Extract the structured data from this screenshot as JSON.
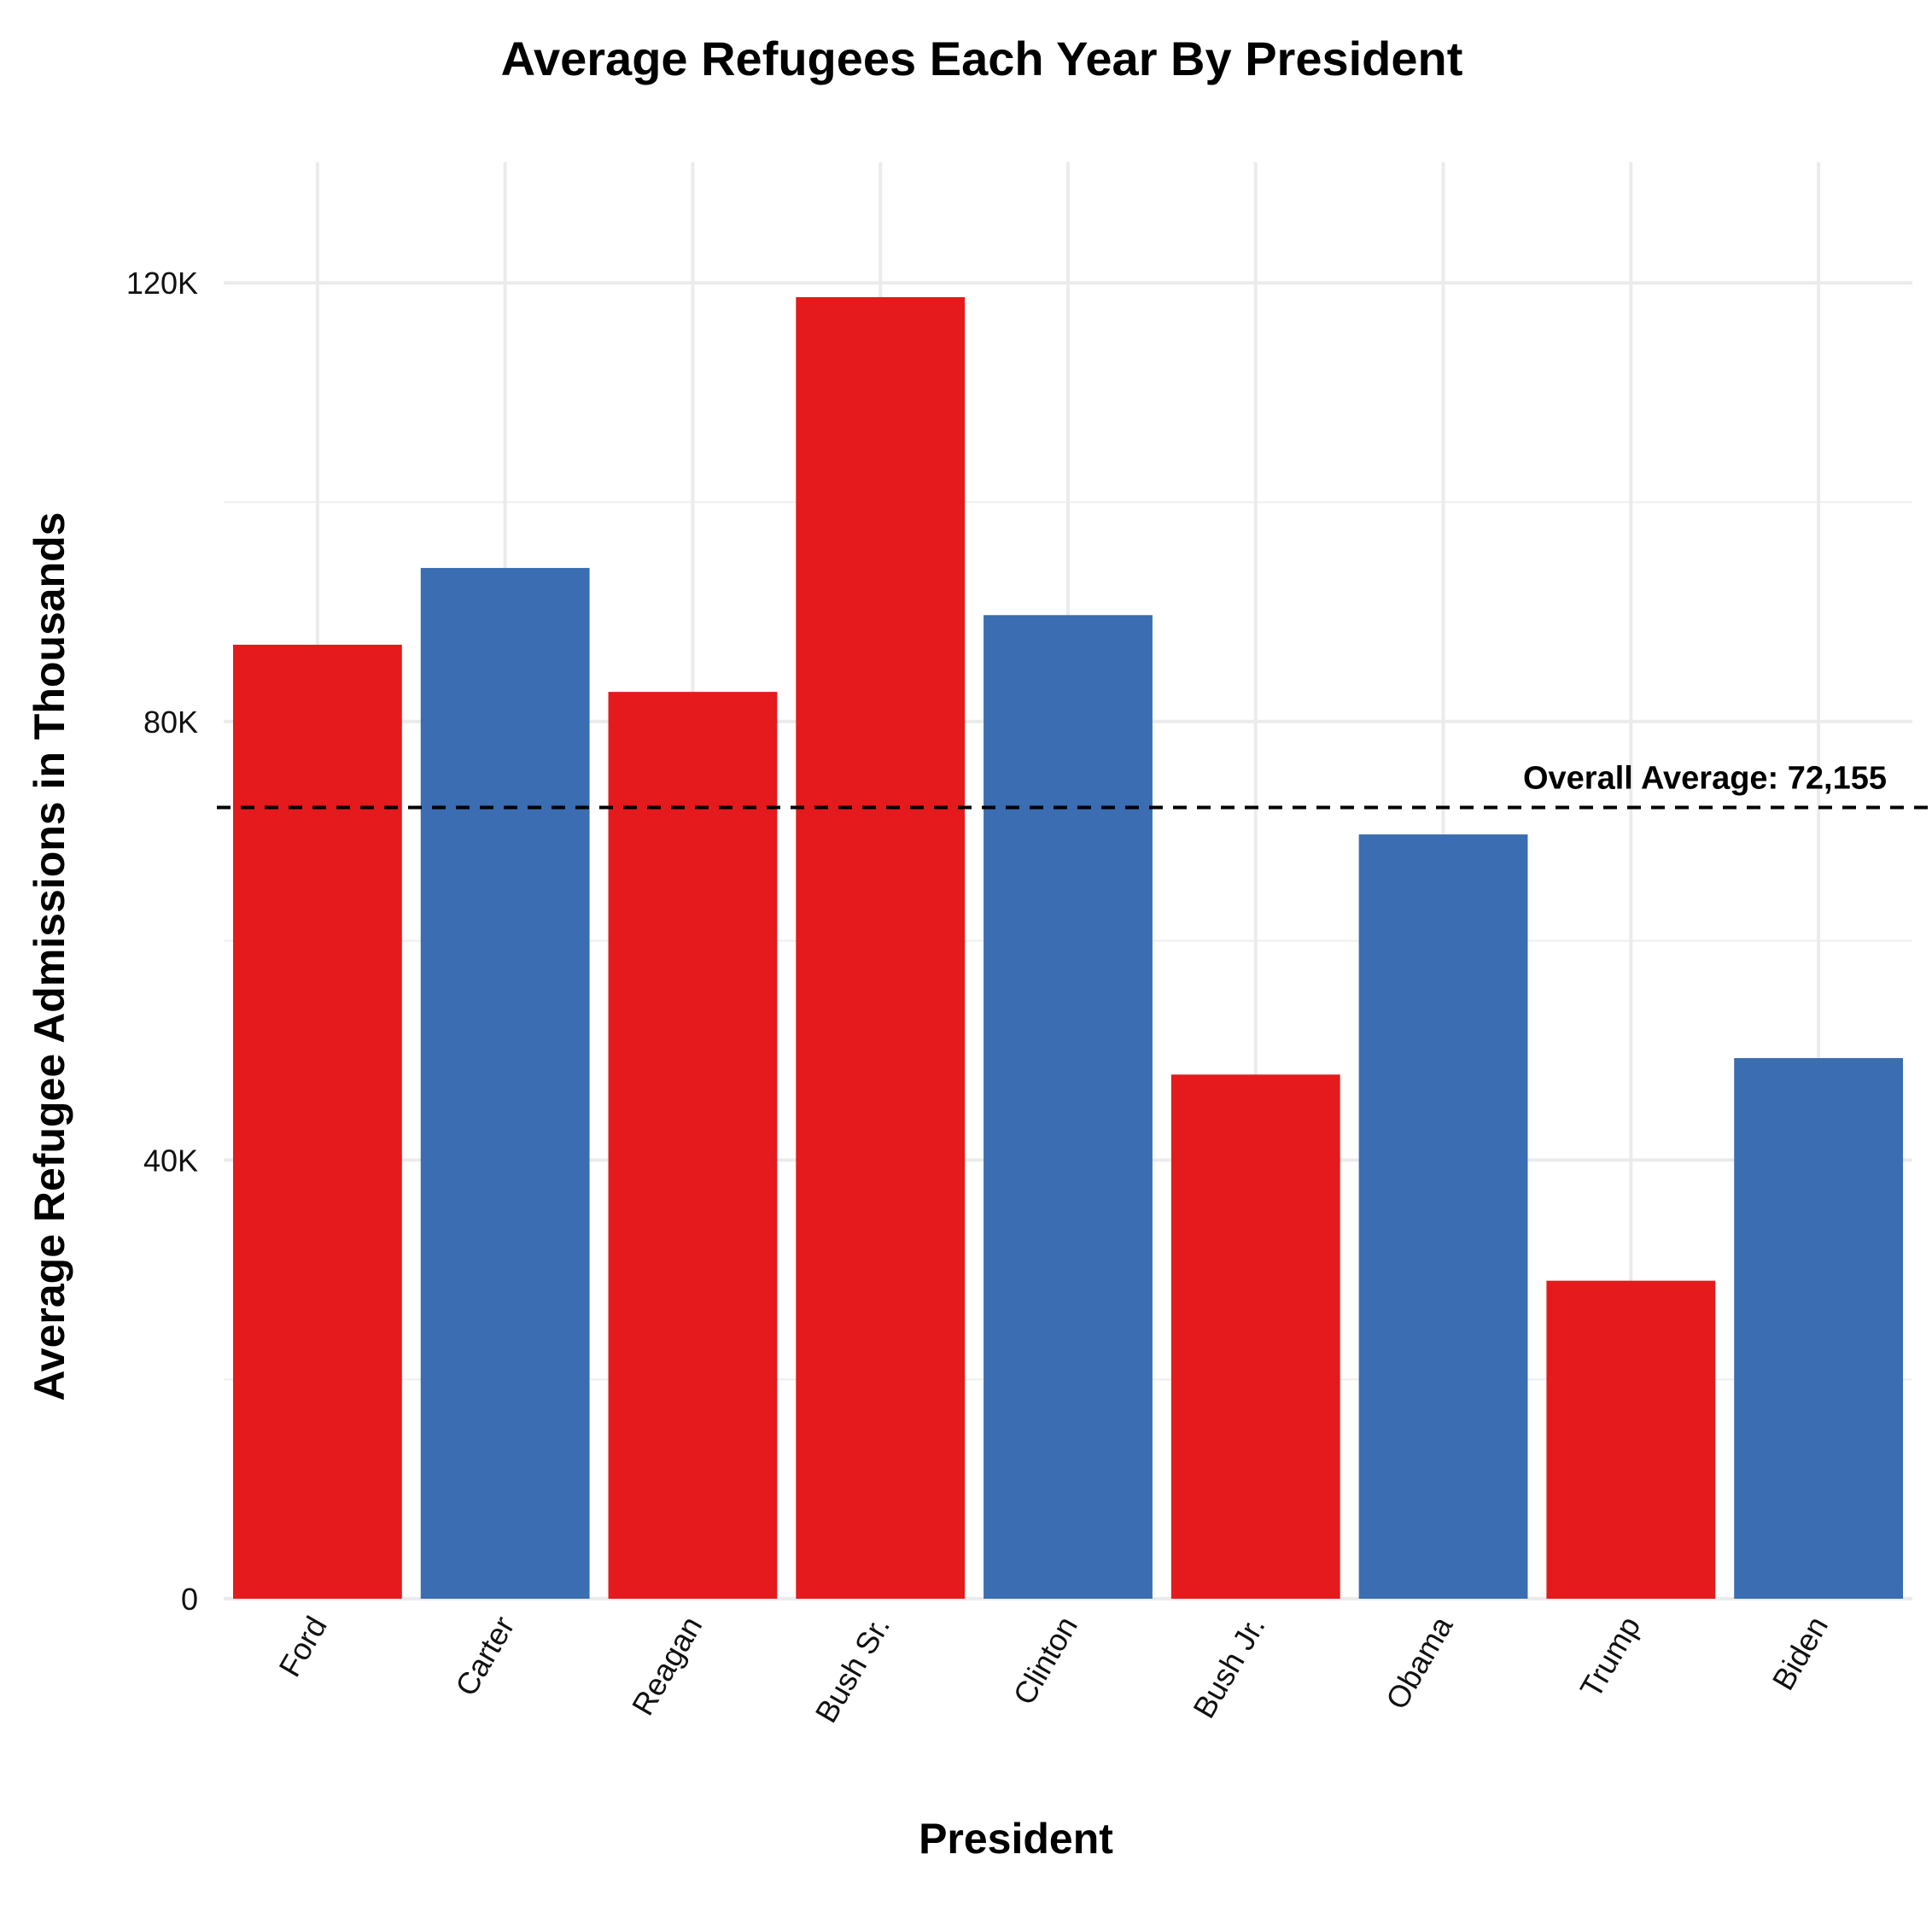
{
  "chart_data": {
    "type": "bar",
    "title": "Average Refugees Each Year By President",
    "xlabel": "President",
    "ylabel": "Average Refugee Admissions in Thousands",
    "categories": [
      "Ford",
      "Carter",
      "Reagan",
      "Bush Sr.",
      "Clinton",
      "Bush Jr.",
      "Obama",
      "Trump",
      "Biden"
    ],
    "values": [
      87000,
      94000,
      82700,
      118700,
      89700,
      47800,
      69700,
      29000,
      49300
    ],
    "colors": [
      "#e41a1c",
      "#3a6db1",
      "#e41a1c",
      "#e41a1c",
      "#3a6db1",
      "#e41a1c",
      "#3a6db1",
      "#e41a1c",
      "#3a6db1"
    ],
    "ylim": [
      0,
      131000
    ],
    "yticks": [
      0,
      40000,
      80000,
      120000
    ],
    "ytick_labels": [
      "0",
      "40K",
      "80K",
      "120K"
    ],
    "reference_line": {
      "value": 72155,
      "label": "Overall Average: 72,155",
      "style": "dashed"
    },
    "grid": true
  }
}
